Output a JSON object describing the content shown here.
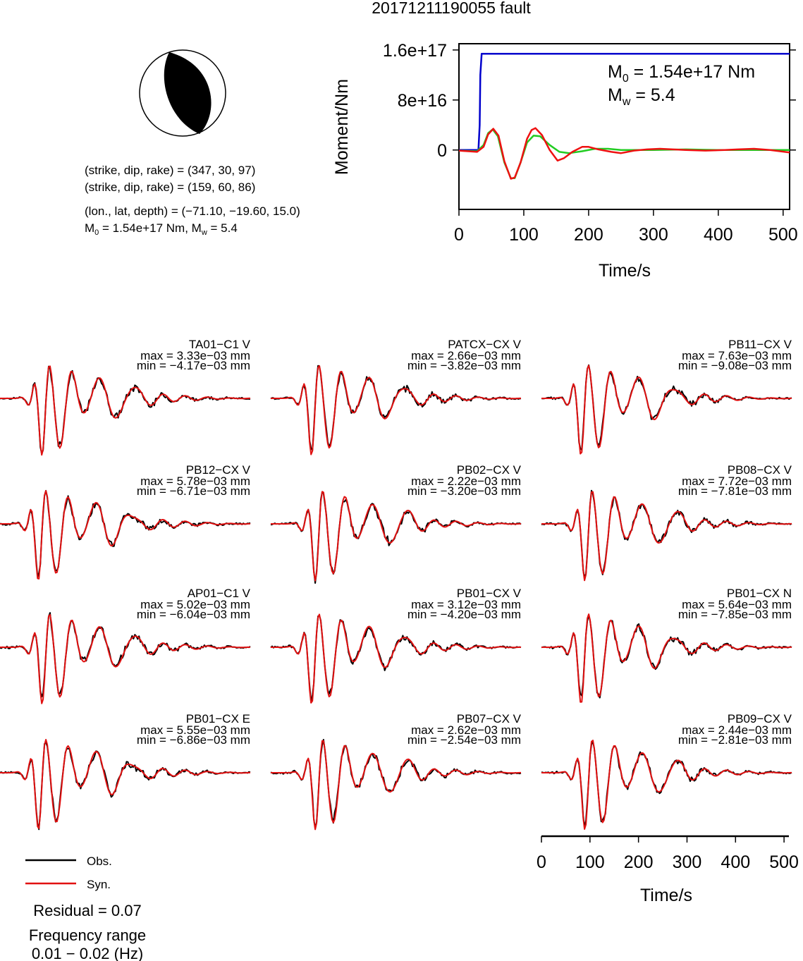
{
  "title": "20171211190055 fault",
  "mechanism": {
    "line1": "(strike, dip, rake) = (347, 30, 97)",
    "line2": "(strike, dip, rake) = (159, 60, 86)",
    "line3": "(lon., lat, depth) = (−71.10, −19.60, 15.0)",
    "m0_prefix": "M",
    "m0_sub": "0",
    "m0_value": " = 1.54e+17 Nm, M",
    "mw_sub": "w",
    "mw_value": " = 5.4"
  },
  "chart_data": [
    {
      "type": "line",
      "id": "moment",
      "xlabel": "Time/s",
      "ylabel": "Moment/Nm",
      "xlim": [
        0,
        510
      ],
      "ylim": [
        -9.5e+16,
        1.7e+17
      ],
      "xticks": [
        0,
        100,
        200,
        300,
        400,
        500
      ],
      "yticks": [
        {
          "value": 0,
          "label": "0"
        },
        {
          "value": 8e+16,
          "label": "8e+16"
        },
        {
          "value": 1.6e+17,
          "label": "1.6e+17"
        }
      ],
      "annotation": {
        "m_prefix": "M",
        "m0_sub": "0",
        "m0_value": " = 1.54e+17 Nm",
        "mw_sub": "w",
        "mw_value": " = 5.4"
      },
      "colors": {
        "moment": "#0000cc",
        "rate": "#22cc22",
        "rate2": "#ee1111"
      },
      "series": [
        {
          "points": [
            [
              0,
              0
            ],
            [
              30,
              0
            ],
            [
              32,
              4e+16
            ],
            [
              33,
              1.2e+17
            ],
            [
              35,
              1.54e+17
            ],
            [
              510,
              1.54e+17
            ]
          ]
        },
        {
          "points": [
            [
              0,
              -1000000000000000.0
            ],
            [
              28,
              -2000000000000000.0
            ],
            [
              38,
              8000000000000000.0
            ],
            [
              45,
              2.7e+16
            ],
            [
              52,
              3.3e+16
            ],
            [
              60,
              2.2e+16
            ],
            [
              70,
              -2e+16
            ],
            [
              80,
              -4.5e+16
            ],
            [
              86,
              -4.5e+16
            ],
            [
              95,
              -2e+16
            ],
            [
              105,
              1.2e+16
            ],
            [
              115,
              2.3e+16
            ],
            [
              125,
              2.2e+16
            ],
            [
              140,
              8000000000000000.0
            ],
            [
              155,
              -3000000000000000.0
            ],
            [
              170,
              -5000000000000000.0
            ],
            [
              190,
              -2000000000000000.0
            ],
            [
              210,
              2000000000000000.0
            ],
            [
              230,
              2000000000000000.0
            ],
            [
              250,
              0
            ],
            [
              300,
              0
            ],
            [
              350,
              1000000000000000.0
            ],
            [
              400,
              0
            ],
            [
              450,
              0
            ],
            [
              510,
              0
            ]
          ]
        },
        {
          "points": [
            [
              0,
              -1000000000000000.0
            ],
            [
              28,
              -3000000000000000.0
            ],
            [
              38,
              5000000000000000.0
            ],
            [
              45,
              2.5e+16
            ],
            [
              53,
              3.4e+16
            ],
            [
              61,
              2.3e+16
            ],
            [
              70,
              -1.8e+16
            ],
            [
              80,
              -4.6e+16
            ],
            [
              86,
              -4.4e+16
            ],
            [
              95,
              -2e+16
            ],
            [
              105,
              1.8e+16
            ],
            [
              112,
              3.2e+16
            ],
            [
              118,
              3.5e+16
            ],
            [
              128,
              2.4e+16
            ],
            [
              140,
              0
            ],
            [
              152,
              -1.7e+16
            ],
            [
              162,
              -1.3e+16
            ],
            [
              175,
              -3000000000000000.0
            ],
            [
              190,
              5000000000000000.0
            ],
            [
              200,
              5000000000000000.0
            ],
            [
              215,
              1000000000000000.0
            ],
            [
              235,
              -3000000000000000.0
            ],
            [
              250,
              -5000000000000000.0
            ],
            [
              270,
              -1000000000000000.0
            ],
            [
              290,
              1000000000000000.0
            ],
            [
              310,
              2000000000000000.0
            ],
            [
              330,
              1000000000000000.0
            ],
            [
              350,
              0
            ],
            [
              380,
              -1000000000000000.0
            ],
            [
              410,
              0
            ],
            [
              430,
              1000000000000000.0
            ],
            [
              455,
              2000000000000000.0
            ],
            [
              480,
              0
            ],
            [
              510,
              -4000000000000000.0
            ]
          ]
        }
      ]
    },
    {
      "type": "line",
      "id": "waveforms",
      "xlabel": "Time/s",
      "xlim": [
        0,
        510
      ],
      "xticks": [
        0,
        100,
        200,
        300,
        400,
        500
      ],
      "colors": {
        "obs": "#000000",
        "syn": "#e11111"
      },
      "stations": [
        {
          "name": "TA01−C1 V",
          "max": "max = 3.33e−03 mm",
          "min": "min = −4.17e−03 mm"
        },
        {
          "name": "PATCX−CX V",
          "max": "max = 2.66e−03 mm",
          "min": "min = −3.82e−03 mm"
        },
        {
          "name": "PB11−CX V",
          "max": "max = 7.63e−03 mm",
          "min": "min = −9.08e−03 mm"
        },
        {
          "name": "PB12−CX V",
          "max": "max = 5.78e−03 mm",
          "min": "min = −6.71e−03 mm"
        },
        {
          "name": "PB02−CX V",
          "max": "max = 2.22e−03 mm",
          "min": "min = −3.20e−03 mm"
        },
        {
          "name": "PB08−CX V",
          "max": "max = 7.72e−03 mm",
          "min": "min = −7.81e−03 mm"
        },
        {
          "name": "AP01−C1 V",
          "max": "max = 5.02e−03 mm",
          "min": "min = −6.04e−03 mm"
        },
        {
          "name": "PB01−CX V",
          "max": "max = 3.12e−03 mm",
          "min": "min = −4.20e−03 mm"
        },
        {
          "name": "PB01−CX N",
          "max": "max = 5.64e−03 mm",
          "min": "min = −7.85e−03 mm"
        },
        {
          "name": "PB01−CX E",
          "max": "max = 5.55e−03 mm",
          "min": "min = −6.86e−03 mm"
        },
        {
          "name": "PB07−CX V",
          "max": "max = 2.62e−03 mm",
          "min": "min = −2.54e−03 mm"
        },
        {
          "name": "PB09−CX V",
          "max": "max = 2.44e−03 mm",
          "min": "min = −2.81e−03 mm"
        }
      ]
    }
  ],
  "legend": {
    "obs": "Obs.",
    "syn": "Syn."
  },
  "residual": "Residual = 0.07",
  "freq_label": "Frequency range",
  "freq_value": "0.01 − 0.02 (Hz)"
}
